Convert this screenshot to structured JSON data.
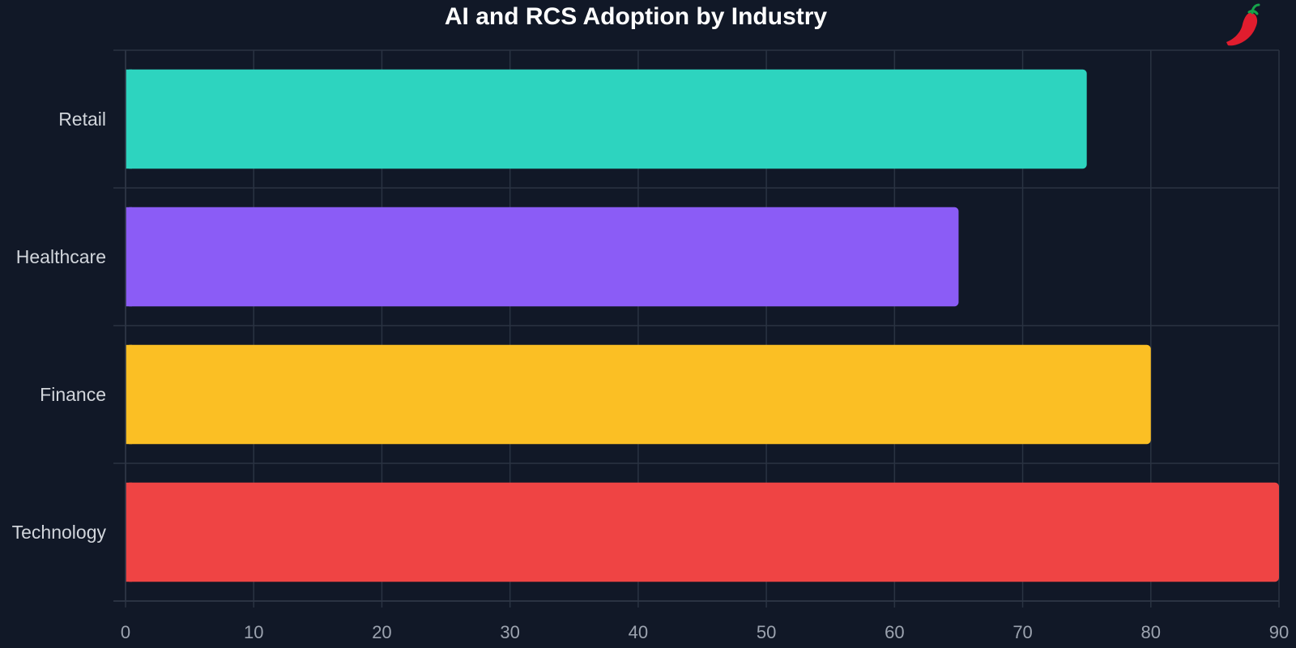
{
  "chart_data": {
    "type": "bar",
    "orientation": "horizontal",
    "title": "AI and RCS Adoption by Industry",
    "categories": [
      "Retail",
      "Healthcare",
      "Finance",
      "Technology"
    ],
    "values": [
      75,
      65,
      80,
      90
    ],
    "colors": [
      "#2dd4bf",
      "#8b5cf6",
      "#fbbf24",
      "#ef4444"
    ],
    "xlabel": "",
    "ylabel": "",
    "xlim": [
      0,
      90
    ],
    "xticks": [
      0,
      10,
      20,
      30,
      40,
      50,
      60,
      70,
      80,
      90
    ],
    "grid": true,
    "legend": "none"
  },
  "theme": {
    "background": "#111827",
    "logo_icon": "chili-pepper-icon",
    "logo_color": "#e11d2e"
  }
}
